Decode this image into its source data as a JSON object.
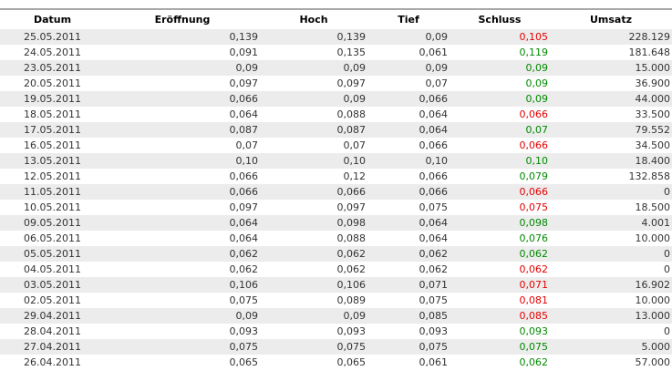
{
  "colors": {
    "positive": "#008a00",
    "negative": "#e60000",
    "row_alt": "#ececec",
    "top_border": "#a8a8a8"
  },
  "table": {
    "columns": [
      {
        "key": "datum",
        "label": "Datum"
      },
      {
        "key": "eroeffnung",
        "label": "Eröffnung"
      },
      {
        "key": "hoch",
        "label": "Hoch"
      },
      {
        "key": "tief",
        "label": "Tief"
      },
      {
        "key": "schluss",
        "label": "Schluss"
      },
      {
        "key": "umsatz",
        "label": "Umsatz"
      }
    ],
    "rows": [
      {
        "datum": "25.05.2011",
        "eroeffnung": "0,139",
        "hoch": "0,139",
        "tief": "0,09",
        "schluss": "0,105",
        "schluss_dir": "down",
        "umsatz": "228.129"
      },
      {
        "datum": "24.05.2011",
        "eroeffnung": "0,091",
        "hoch": "0,135",
        "tief": "0,061",
        "schluss": "0,119",
        "schluss_dir": "up",
        "umsatz": "181.648"
      },
      {
        "datum": "23.05.2011",
        "eroeffnung": "0,09",
        "hoch": "0,09",
        "tief": "0,09",
        "schluss": "0,09",
        "schluss_dir": "up",
        "umsatz": "15.000"
      },
      {
        "datum": "20.05.2011",
        "eroeffnung": "0,097",
        "hoch": "0,097",
        "tief": "0,07",
        "schluss": "0,09",
        "schluss_dir": "up",
        "umsatz": "36.900"
      },
      {
        "datum": "19.05.2011",
        "eroeffnung": "0,066",
        "hoch": "0,09",
        "tief": "0,066",
        "schluss": "0,09",
        "schluss_dir": "up",
        "umsatz": "44.000"
      },
      {
        "datum": "18.05.2011",
        "eroeffnung": "0,064",
        "hoch": "0,088",
        "tief": "0,064",
        "schluss": "0,066",
        "schluss_dir": "down",
        "umsatz": "33.500"
      },
      {
        "datum": "17.05.2011",
        "eroeffnung": "0,087",
        "hoch": "0,087",
        "tief": "0,064",
        "schluss": "0,07",
        "schluss_dir": "up",
        "umsatz": "79.552"
      },
      {
        "datum": "16.05.2011",
        "eroeffnung": "0,07",
        "hoch": "0,07",
        "tief": "0,066",
        "schluss": "0,066",
        "schluss_dir": "down",
        "umsatz": "34.500"
      },
      {
        "datum": "13.05.2011",
        "eroeffnung": "0,10",
        "hoch": "0,10",
        "tief": "0,10",
        "schluss": "0,10",
        "schluss_dir": "up",
        "umsatz": "18.400"
      },
      {
        "datum": "12.05.2011",
        "eroeffnung": "0,066",
        "hoch": "0,12",
        "tief": "0,066",
        "schluss": "0,079",
        "schluss_dir": "up",
        "umsatz": "132.858"
      },
      {
        "datum": "11.05.2011",
        "eroeffnung": "0,066",
        "hoch": "0,066",
        "tief": "0,066",
        "schluss": "0,066",
        "schluss_dir": "down",
        "umsatz": "0"
      },
      {
        "datum": "10.05.2011",
        "eroeffnung": "0,097",
        "hoch": "0,097",
        "tief": "0,075",
        "schluss": "0,075",
        "schluss_dir": "down",
        "umsatz": "18.500"
      },
      {
        "datum": "09.05.2011",
        "eroeffnung": "0,064",
        "hoch": "0,098",
        "tief": "0,064",
        "schluss": "0,098",
        "schluss_dir": "up",
        "umsatz": "4.001"
      },
      {
        "datum": "06.05.2011",
        "eroeffnung": "0,064",
        "hoch": "0,088",
        "tief": "0,064",
        "schluss": "0,076",
        "schluss_dir": "up",
        "umsatz": "10.000"
      },
      {
        "datum": "05.05.2011",
        "eroeffnung": "0,062",
        "hoch": "0,062",
        "tief": "0,062",
        "schluss": "0,062",
        "schluss_dir": "up",
        "umsatz": "0"
      },
      {
        "datum": "04.05.2011",
        "eroeffnung": "0,062",
        "hoch": "0,062",
        "tief": "0,062",
        "schluss": "0,062",
        "schluss_dir": "down",
        "umsatz": "0"
      },
      {
        "datum": "03.05.2011",
        "eroeffnung": "0,106",
        "hoch": "0,106",
        "tief": "0,071",
        "schluss": "0,071",
        "schluss_dir": "down",
        "umsatz": "16.902"
      },
      {
        "datum": "02.05.2011",
        "eroeffnung": "0,075",
        "hoch": "0,089",
        "tief": "0,075",
        "schluss": "0,081",
        "schluss_dir": "down",
        "umsatz": "10.000"
      },
      {
        "datum": "29.04.2011",
        "eroeffnung": "0,09",
        "hoch": "0,09",
        "tief": "0,085",
        "schluss": "0,085",
        "schluss_dir": "down",
        "umsatz": "13.000"
      },
      {
        "datum": "28.04.2011",
        "eroeffnung": "0,093",
        "hoch": "0,093",
        "tief": "0,093",
        "schluss": "0,093",
        "schluss_dir": "up",
        "umsatz": "0"
      },
      {
        "datum": "27.04.2011",
        "eroeffnung": "0,075",
        "hoch": "0,075",
        "tief": "0,075",
        "schluss": "0,075",
        "schluss_dir": "up",
        "umsatz": "5.000"
      },
      {
        "datum": "26.04.2011",
        "eroeffnung": "0,065",
        "hoch": "0,065",
        "tief": "0,061",
        "schluss": "0,062",
        "schluss_dir": "up",
        "umsatz": "57.000"
      }
    ]
  }
}
